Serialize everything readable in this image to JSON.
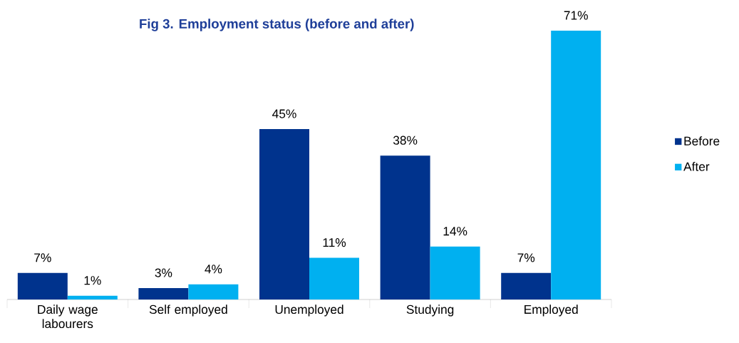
{
  "chart_data": {
    "type": "bar",
    "title": "Fig 3. Employment status (before and after)",
    "categories": [
      "Daily wage labourers",
      "Self employed",
      "Unemployed",
      "Studying",
      "Employed"
    ],
    "series": [
      {
        "name": "Before",
        "color": "#00338d",
        "values": [
          7,
          3,
          45,
          38,
          7
        ],
        "value_labels": [
          "7%",
          "3%",
          "45%",
          "38%",
          "7%"
        ]
      },
      {
        "name": "After",
        "color": "#00b0f0",
        "values": [
          1,
          4,
          11,
          14,
          71
        ],
        "value_labels": [
          "1%",
          "4%",
          "11%",
          "14%",
          "71%"
        ]
      }
    ],
    "legend": "right"
  }
}
